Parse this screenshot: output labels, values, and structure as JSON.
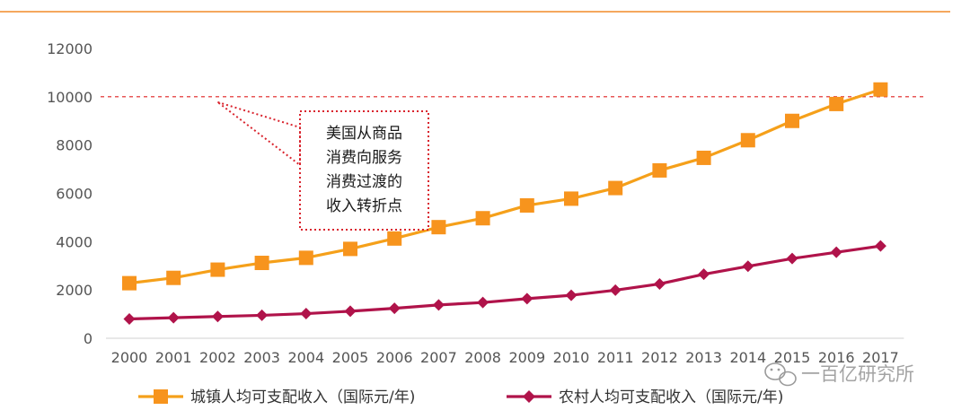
{
  "colors": {
    "urban": "#f5a01a",
    "urban_marker": "#f7941d",
    "rural": "#b0134a",
    "threshold": "#e02020",
    "annotation_border": "#d9232d",
    "title_rule": "#f28c28",
    "axis": "#d0d0d0",
    "tick_text": "#555555"
  },
  "watermark": {
    "text": "一百亿研究所",
    "icon": "wechat-icon"
  },
  "chart_data": {
    "type": "line",
    "title": "",
    "xlabel": "",
    "ylabel": "",
    "categories": [
      "2000",
      "2001",
      "2002",
      "2003",
      "2004",
      "2005",
      "2006",
      "2007",
      "2008",
      "2009",
      "2010",
      "2011",
      "2012",
      "2013",
      "2014",
      "2015",
      "2016",
      "2017"
    ],
    "ylim": [
      0,
      12000
    ],
    "yticks": [
      "0",
      "2000",
      "4000",
      "6000",
      "8000",
      "10000",
      "12000"
    ],
    "grid": false,
    "legend_position": "bottom",
    "series": [
      {
        "name": "城镇人均可支配收入（国际元/年)",
        "marker": "square",
        "values": [
          2280,
          2500,
          2840,
          3120,
          3330,
          3700,
          4130,
          4600,
          4970,
          5500,
          5780,
          6220,
          6950,
          7470,
          8200,
          9000,
          9700,
          10300
        ]
      },
      {
        "name": "农村人均可支配收入（国际元/年)",
        "marker": "diamond",
        "values": [
          800,
          850,
          900,
          950,
          1020,
          1120,
          1240,
          1380,
          1480,
          1640,
          1780,
          1990,
          2250,
          2650,
          2980,
          3300,
          3560,
          3820
        ]
      }
    ],
    "reference_line": {
      "value": 10000,
      "style": "dashed"
    },
    "annotation": {
      "lines": [
        "美国从商品",
        "消费向服务",
        "消费过渡的",
        "收入转折点"
      ],
      "points_to_category": "2002",
      "points_to_value": 10000
    }
  }
}
